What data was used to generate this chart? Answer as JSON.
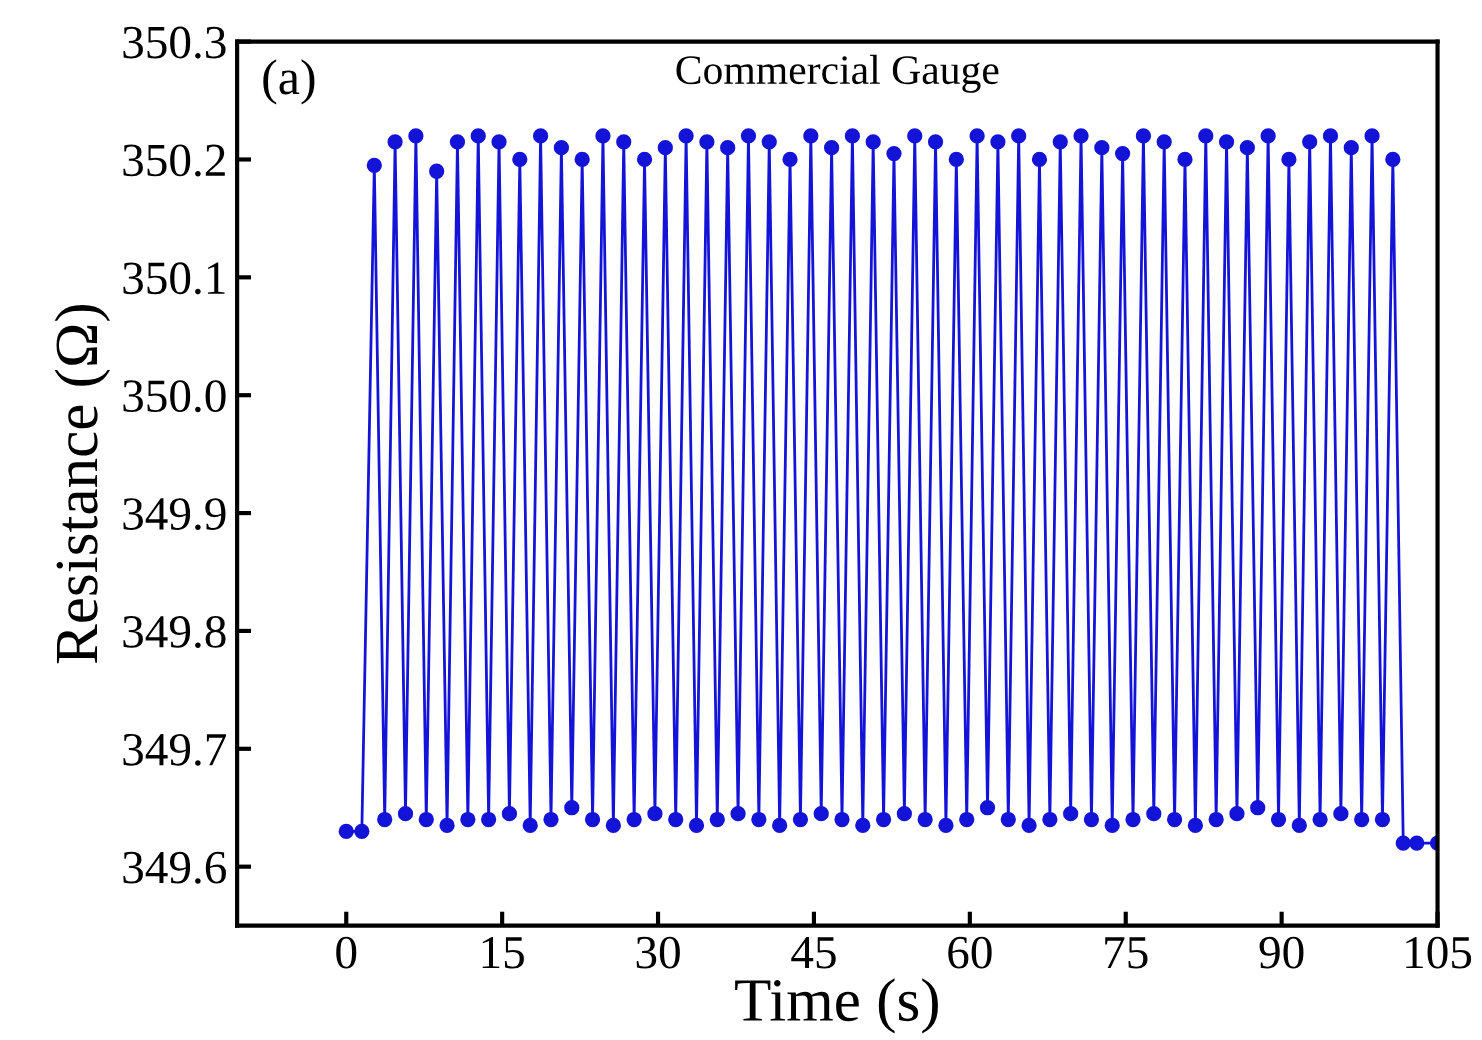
{
  "chart_data": {
    "type": "line",
    "title": "Commercial Gauge",
    "xlabel": "Time (s)",
    "ylabel": "Resistance (Ω)",
    "annotations": [
      "(a)"
    ],
    "xlim": [
      -10.5,
      105
    ],
    "xticks": [
      0,
      15,
      30,
      45,
      60,
      75,
      90,
      105
    ],
    "ylim": [
      349.55,
      350.3
    ],
    "yticks": [
      {
        "value": 349.6,
        "label": "349.6"
      },
      {
        "value": 349.7,
        "label": "349.7"
      },
      {
        "value": 349.8,
        "label": "349.8"
      },
      {
        "value": 349.9,
        "label": "349.9"
      },
      {
        "value": 350.0,
        "label": "350.0"
      },
      {
        "value": 350.1,
        "label": "350.1"
      },
      {
        "value": 350.2,
        "label": "350.2"
      },
      {
        "value": 350.3,
        "label": "350.3"
      }
    ],
    "grid": false,
    "legend": false,
    "marker": "circle",
    "line_style": "solid",
    "series": [
      {
        "color": "#1414d8",
        "x": [
          0,
          1.5,
          2.7,
          3.7,
          4.7,
          5.7,
          6.7,
          7.7,
          8.7,
          9.7,
          10.7,
          11.7,
          12.7,
          13.7,
          14.7,
          15.7,
          16.7,
          17.7,
          18.7,
          19.7,
          20.7,
          21.7,
          22.7,
          23.7,
          24.7,
          25.7,
          26.7,
          27.7,
          28.7,
          29.7,
          30.7,
          31.7,
          32.7,
          33.7,
          34.7,
          35.7,
          36.7,
          37.7,
          38.7,
          39.7,
          40.7,
          41.7,
          42.7,
          43.7,
          44.7,
          45.7,
          46.7,
          47.7,
          48.7,
          49.7,
          50.7,
          51.7,
          52.7,
          53.7,
          54.7,
          55.7,
          56.7,
          57.7,
          58.7,
          59.7,
          60.7,
          61.7,
          62.7,
          63.7,
          64.7,
          65.7,
          66.7,
          67.7,
          68.7,
          69.7,
          70.7,
          71.7,
          72.7,
          73.7,
          74.7,
          75.7,
          76.7,
          77.7,
          78.7,
          79.7,
          80.7,
          81.7,
          82.7,
          83.7,
          84.7,
          85.7,
          86.7,
          87.7,
          88.7,
          89.7,
          90.7,
          91.7,
          92.7,
          93.7,
          94.7,
          95.7,
          96.7,
          97.7,
          98.7,
          99.7,
          100.7,
          101.7,
          103,
          105
        ],
        "values": [
          349.63,
          349.63,
          350.195,
          349.64,
          350.215,
          349.645,
          350.22,
          349.64,
          350.19,
          349.635,
          350.215,
          349.64,
          350.22,
          349.64,
          350.215,
          349.645,
          350.2,
          349.635,
          350.22,
          349.64,
          350.21,
          349.65,
          350.2,
          349.64,
          350.22,
          349.635,
          350.215,
          349.64,
          350.2,
          349.645,
          350.21,
          349.64,
          350.22,
          349.635,
          350.215,
          349.64,
          350.21,
          349.645,
          350.22,
          349.64,
          350.215,
          349.635,
          350.2,
          349.64,
          350.22,
          349.645,
          350.21,
          349.64,
          350.22,
          349.635,
          350.215,
          349.64,
          350.205,
          349.645,
          350.22,
          349.64,
          350.215,
          349.635,
          350.2,
          349.64,
          350.22,
          349.65,
          350.215,
          349.64,
          350.22,
          349.635,
          350.2,
          349.64,
          350.215,
          349.645,
          350.22,
          349.64,
          350.21,
          349.635,
          350.205,
          349.64,
          350.22,
          349.645,
          350.215,
          349.64,
          350.2,
          349.635,
          350.22,
          349.64,
          350.215,
          349.645,
          350.21,
          349.65,
          350.22,
          349.64,
          350.2,
          349.635,
          350.215,
          349.64,
          350.22,
          349.645,
          350.21,
          349.64,
          350.22,
          349.64,
          350.2,
          349.62,
          349.62,
          349.62
        ]
      }
    ]
  }
}
